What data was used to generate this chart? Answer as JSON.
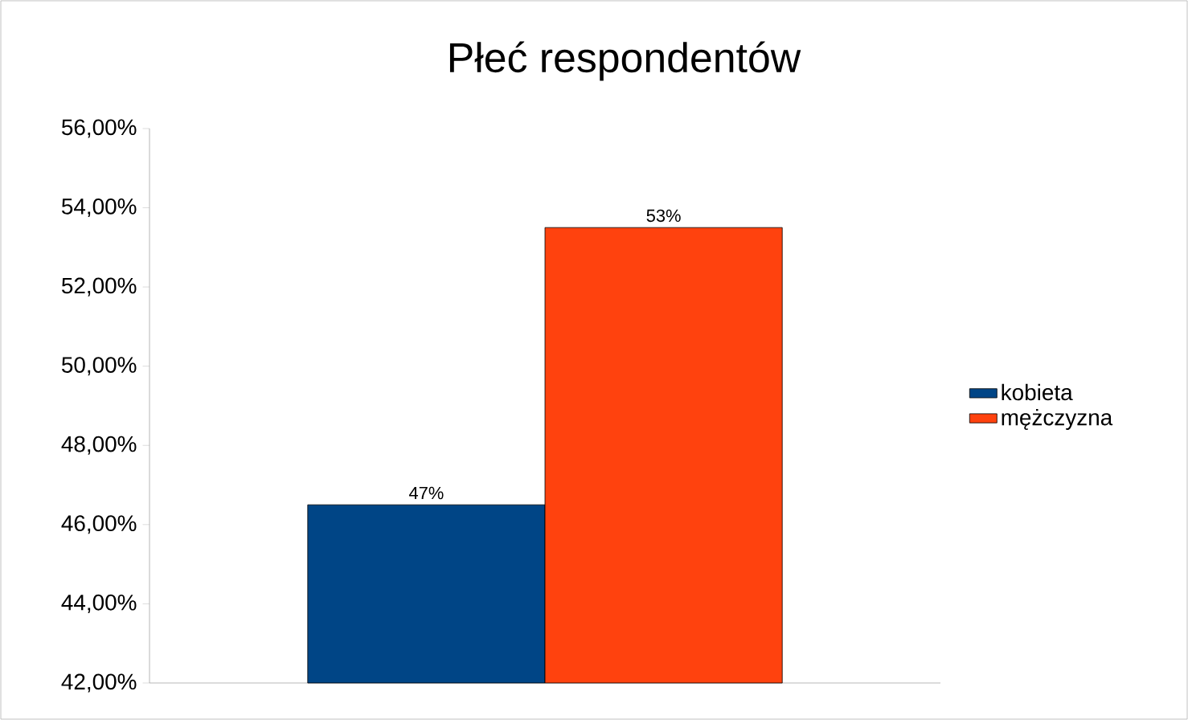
{
  "chart_data": {
    "type": "bar",
    "title": "Płeć respondentów",
    "categories": [
      null
    ],
    "series": [
      {
        "name": "kobieta",
        "color": "#004586",
        "values": [
          46.5
        ],
        "value_labels": [
          "47%"
        ]
      },
      {
        "name": "mężczyzna",
        "color": "#ff420e",
        "values": [
          53.5
        ],
        "value_labels": [
          "53%"
        ]
      }
    ],
    "ylim": [
      42,
      56
    ],
    "yticks": [
      {
        "value": 42,
        "label": "42,00%"
      },
      {
        "value": 44,
        "label": "44,00%"
      },
      {
        "value": 46,
        "label": "46,00%"
      },
      {
        "value": 48,
        "label": "48,00%"
      },
      {
        "value": 50,
        "label": "50,00%"
      },
      {
        "value": 52,
        "label": "52,00%"
      },
      {
        "value": 54,
        "label": "54,00%"
      },
      {
        "value": 56,
        "label": "56,00%"
      }
    ],
    "grid": false,
    "legend": "right"
  }
}
